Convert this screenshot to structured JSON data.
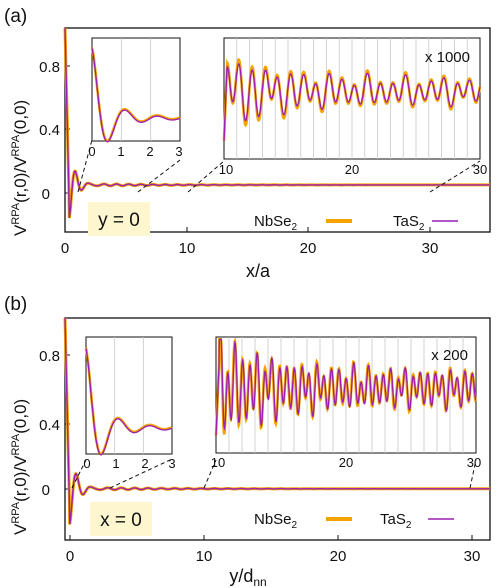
{
  "colors": {
    "nbse2": "#f5a300",
    "tas2": "#9b1fb0",
    "axis": "#111111",
    "grid": "#c8c8c8",
    "label_box": "#fdf6cf"
  },
  "legend": {
    "nbse2": "NbSe",
    "tas2": "TaS",
    "sub": "2"
  },
  "chart_data": [
    {
      "panel": "(a)",
      "type": "line",
      "ylabel": "V^RPA(r,0)/V^RPA(0,0)",
      "xlabel": "x/a",
      "condition": "y = 0",
      "xlim": [
        0,
        35
      ],
      "ylim": [
        -0.3,
        1.0
      ],
      "xticks": [
        0,
        10,
        20,
        30
      ],
      "yticks": [
        0,
        0.4,
        0.8
      ],
      "inset_left": {
        "xlim": [
          0,
          3
        ],
        "ylim": [
          0.25,
          1.0
        ],
        "xticks": [
          0,
          1,
          2,
          3
        ],
        "period": 1.0
      },
      "inset_right": {
        "xlim": [
          10,
          30
        ],
        "ylim": [
          0,
          1.0
        ],
        "xticks": [
          10,
          20,
          30
        ],
        "scale": "x 1000",
        "period": 1.0
      },
      "series": [
        {
          "name": "NbSe2",
          "decay": 0.55,
          "amp": 0.55,
          "freq": 6.28
        },
        {
          "name": "TaS2",
          "decay": 0.58,
          "amp": 0.52,
          "freq": 6.28
        }
      ]
    },
    {
      "panel": "(b)",
      "type": "line",
      "ylabel": "V^RPA(r,0)/V^RPA(0,0)",
      "xlabel": "y/d_nn",
      "condition": "x = 0",
      "xlim": [
        0,
        32
      ],
      "ylim": [
        -0.3,
        1.0
      ],
      "xticks": [
        0,
        10,
        20,
        30
      ],
      "yticks": [
        0,
        0.4,
        0.8
      ],
      "inset_left": {
        "xlim": [
          0,
          3
        ],
        "ylim": [
          0.25,
          1.0
        ],
        "xticks": [
          0,
          1,
          2,
          3
        ],
        "period": 1.0
      },
      "inset_right": {
        "xlim": [
          10,
          30
        ],
        "ylim": [
          0,
          1.0
        ],
        "xticks": [
          10,
          20,
          30
        ],
        "scale": "x 200",
        "period": 0.57
      },
      "series": [
        {
          "name": "NbSe2",
          "decay": 0.55,
          "amp": 0.55,
          "freq": 6.28
        },
        {
          "name": "TaS2",
          "decay": 0.58,
          "amp": 0.52,
          "freq": 6.28
        }
      ]
    }
  ],
  "text": {
    "a": {
      "panel": "(a)",
      "ytitle_main": "V",
      "ytitle_sup": "RPA",
      "ytitle_mid": "(r,0)/V",
      "ytitle_sup2": "RPA",
      "ytitle_end": "(0,0)",
      "xlabel": "x/a",
      "cond": "y = 0",
      "scale": "x 1000",
      "yt0": "0",
      "yt1": "0.4",
      "yt2": "0.8",
      "xt0": "0",
      "xt1": "10",
      "xt2": "20",
      "xt3": "30",
      "il0": "0",
      "il1": "1",
      "il2": "2",
      "il3": "3",
      "ir0": "10",
      "ir1": "20",
      "ir2": "30"
    },
    "b": {
      "panel": "(b)",
      "ytitle_main": "V",
      "ytitle_sup": "RPA",
      "ytitle_mid": "(r,0)/V",
      "ytitle_sup2": "RPA",
      "ytitle_end": "(0,0)",
      "xlabel_main": "y/d",
      "xlabel_sub": "nn",
      "cond": "x = 0",
      "scale": "x 200",
      "yt0": "0",
      "yt1": "0.4",
      "yt2": "0.8",
      "xt0": "0",
      "xt1": "10",
      "xt2": "20",
      "xt3": "30",
      "il0": "0",
      "il1": "1",
      "il2": "2",
      "il3": "3",
      "ir0": "10",
      "ir1": "20",
      "ir2": "30"
    }
  }
}
